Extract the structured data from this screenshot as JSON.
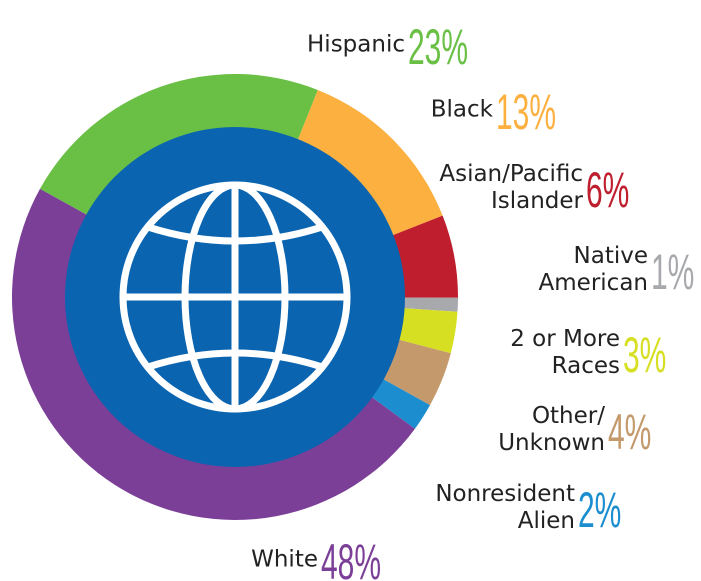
{
  "chart_data": {
    "type": "donut",
    "categories": [
      "Hispanic",
      "Black",
      "Asian/Pacific Islander",
      "Native American",
      "2 or More Races",
      "Other/ Unknown",
      "Nonresident Alien",
      "White"
    ],
    "values": [
      23,
      13,
      6,
      1,
      3,
      4,
      2,
      48
    ],
    "value_labels": [
      "23%",
      "13%",
      "6%",
      "1%",
      "3%",
      "4%",
      "2%",
      "48%"
    ],
    "colors": [
      "#6abf45",
      "#fbb040",
      "#be1e2d",
      "#a7a9ac",
      "#d7df23",
      "#c49a6c",
      "#1c8ed0",
      "#7b3f98"
    ]
  }
}
